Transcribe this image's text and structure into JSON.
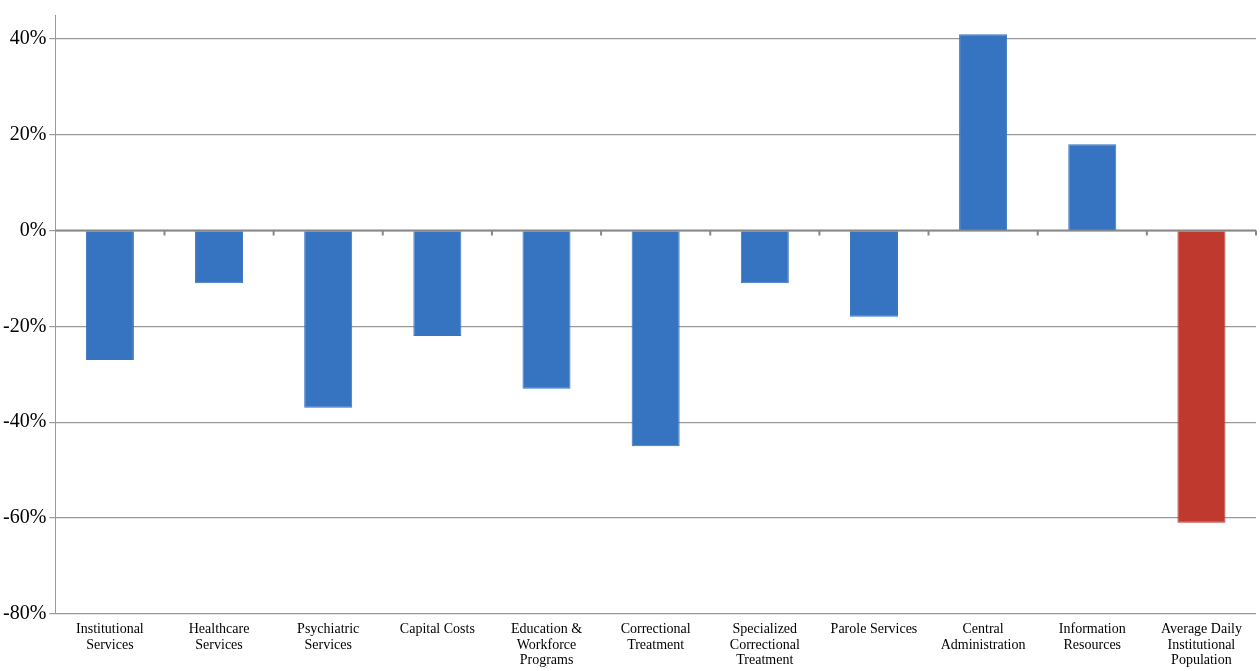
{
  "chart_data": {
    "type": "bar",
    "categories": [
      "Institutional Services",
      "Healthcare Services",
      "Psychiatric Services",
      "Capital Costs",
      "Education & Workforce Programs",
      "Correctional Treatment",
      "Specialized Correctional Treatment",
      "Parole Services",
      "Central Administration",
      "Information Resources",
      "Average Daily Institutional Population"
    ],
    "values": [
      -27,
      -11,
      -37,
      -22,
      -33,
      -45,
      -11,
      -18,
      41,
      18,
      -61
    ],
    "colors": [
      "#3673c0",
      "#3673c0",
      "#3673c0",
      "#3673c0",
      "#3673c0",
      "#3673c0",
      "#3673c0",
      "#3673c0",
      "#3673c0",
      "#3673c0",
      "#c0392f"
    ],
    "ylim": [
      -80,
      45
    ],
    "yticks": [
      {
        "value": -80,
        "label": "-80%"
      },
      {
        "value": -60,
        "label": "-60%"
      },
      {
        "value": -40,
        "label": "-40%"
      },
      {
        "value": -20,
        "label": "-20%"
      },
      {
        "value": 0,
        "label": "0%"
      },
      {
        "value": 20,
        "label": "20%"
      },
      {
        "value": 40,
        "label": "40%"
      }
    ],
    "grid": "y"
  }
}
